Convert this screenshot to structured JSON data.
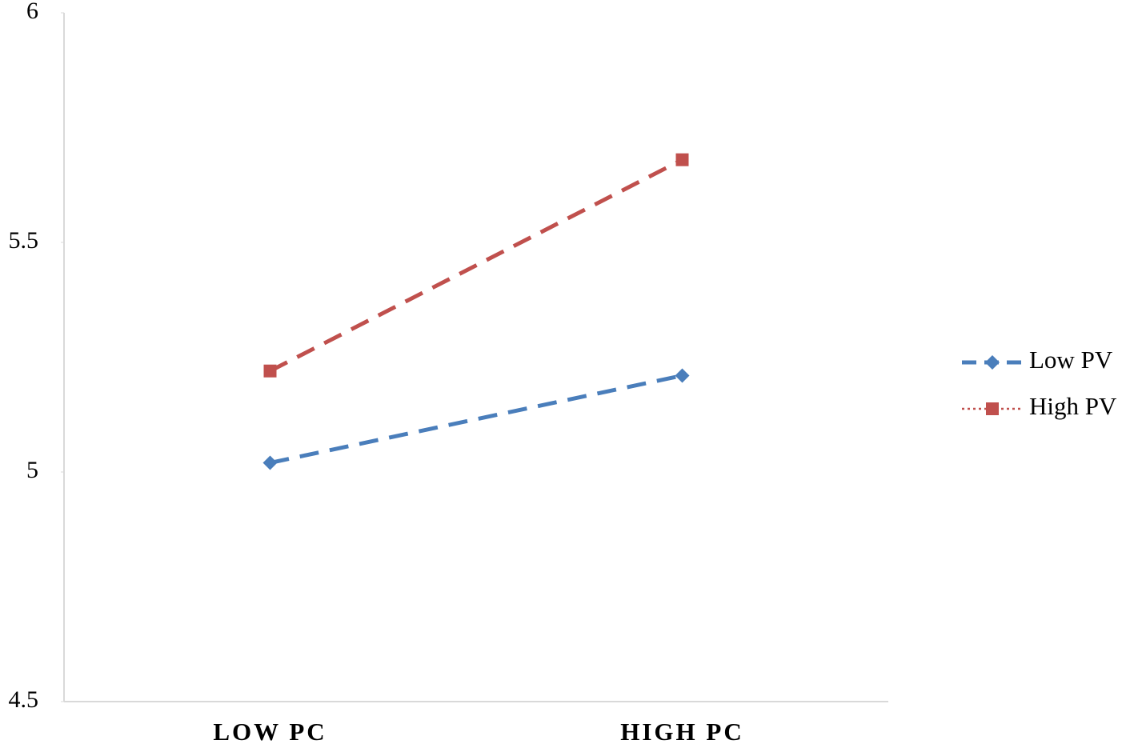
{
  "chart_data": {
    "type": "line",
    "categories": [
      "LOW PC",
      "HIGH PC"
    ],
    "series": [
      {
        "name": "Low PV",
        "color": "#4a7ebb",
        "marker": "diamond",
        "legend_line": "dashed",
        "values": [
          5.02,
          5.21
        ]
      },
      {
        "name": "High PV",
        "color": "#c0504d",
        "marker": "square",
        "legend_line": "dotted",
        "values": [
          5.22,
          5.68
        ]
      }
    ],
    "ylim": [
      4.5,
      6
    ],
    "yticks": [
      4.5,
      5,
      5.5,
      6
    ],
    "grid": false,
    "legend": "right"
  }
}
